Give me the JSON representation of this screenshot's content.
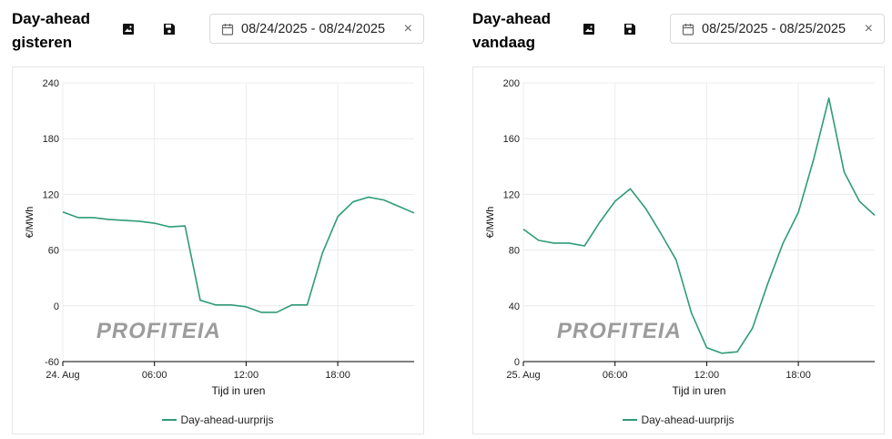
{
  "colors": {
    "line": "#2e9c74",
    "grid": "#ececec",
    "axis": "#000000",
    "watermark": "#9c9c9c"
  },
  "icons": {
    "image": "image-icon",
    "save": "save-icon",
    "calendar": "calendar-icon",
    "clear": "close-icon"
  },
  "panels": [
    {
      "title_line1": "Day-ahead",
      "title_line2": "gisteren",
      "date_range": "08/24/2025 - 08/24/2025",
      "clear_label": "×",
      "watermark": "PROFITEIA"
    },
    {
      "title_line1": "Day-ahead",
      "title_line2": "vandaag",
      "date_range": "08/25/2025 - 08/25/2025",
      "clear_label": "×",
      "watermark": "PROFITEIA"
    }
  ],
  "chart_data": [
    {
      "type": "line",
      "xlabel": "Tijd in uren",
      "ylabel": "€/MWh",
      "x_ticks": [
        "24. Aug",
        "06:00",
        "12:00",
        "18:00"
      ],
      "y_ticks": [
        -60,
        0,
        60,
        120,
        180,
        240
      ],
      "ylim": [
        -60,
        240
      ],
      "grid": true,
      "legend": "bottom-center",
      "x": [
        0,
        1,
        2,
        3,
        4,
        5,
        6,
        7,
        8,
        9,
        10,
        11,
        12,
        13,
        14,
        15,
        16,
        17,
        18,
        19,
        20,
        21,
        22,
        23
      ],
      "series": [
        {
          "name": "Day-ahead-uurprijs",
          "values": [
            101,
            95,
            95,
            93,
            92,
            91,
            89,
            85,
            86,
            6,
            1,
            1,
            -1,
            -7,
            -7,
            1,
            1,
            57,
            96,
            112,
            117,
            114,
            107,
            100
          ]
        }
      ]
    },
    {
      "type": "line",
      "xlabel": "Tijd in uren",
      "ylabel": "€/MWh",
      "x_ticks": [
        "25. Aug",
        "06:00",
        "12:00",
        "18:00"
      ],
      "y_ticks": [
        0,
        40,
        80,
        120,
        160,
        200
      ],
      "ylim": [
        0,
        200
      ],
      "grid": true,
      "legend": "bottom-center",
      "x": [
        0,
        1,
        2,
        3,
        4,
        5,
        6,
        7,
        8,
        9,
        10,
        11,
        12,
        13,
        14,
        15,
        16,
        17,
        18,
        19,
        20,
        21,
        22,
        23
      ],
      "series": [
        {
          "name": "Day-ahead-uurprijs",
          "values": [
            95,
            87,
            85,
            85,
            83,
            100,
            115,
            124,
            110,
            92,
            73,
            35,
            10,
            6,
            7,
            24,
            56,
            85,
            107,
            145,
            189,
            136,
            115,
            105
          ]
        }
      ]
    }
  ]
}
